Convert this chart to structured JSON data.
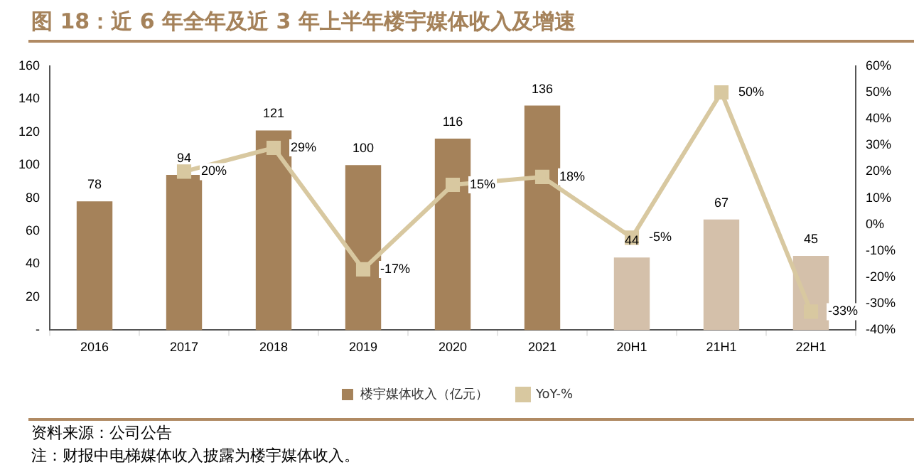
{
  "chart_data": {
    "type": "bar",
    "title": "图 18：近 6 年全年及近 3 年上半年楼宇媒体收入及增速",
    "categories": [
      "2016",
      "2017",
      "2018",
      "2019",
      "2020",
      "2021",
      "20H1",
      "21H1",
      "22H1"
    ],
    "series": [
      {
        "name": "楼宇媒体收入（亿元）",
        "colors": [
          "#a5825a",
          "#a5825a",
          "#a5825a",
          "#a5825a",
          "#a5825a",
          "#a5825a",
          "#d4c0aa",
          "#d4c0aa",
          "#d4c0aa"
        ],
        "color": "#a5825a",
        "values": [
          78,
          94,
          121,
          100,
          116,
          136,
          44,
          67,
          45
        ],
        "value_labels": [
          "78",
          "94",
          "121",
          "100",
          "116",
          "136",
          "44",
          "67",
          "45"
        ]
      },
      {
        "name": "YoY-%",
        "type": "line",
        "axis": "y2",
        "color": "#d8c8a0",
        "marker": "square",
        "values": [
          null,
          20,
          29,
          -17,
          15,
          18,
          -5,
          50,
          -33
        ],
        "value_labels": [
          null,
          "20%",
          "29%",
          "-17%",
          "15%",
          "18%",
          "-5%",
          "50%",
          "-33%"
        ]
      }
    ],
    "ylim": [
      0,
      160
    ],
    "yticks": [
      {
        "value": 0,
        "label": "-"
      },
      20,
      40,
      60,
      80,
      100,
      120,
      140,
      160
    ],
    "y2lim": [
      -40,
      60
    ],
    "y2ticks": [
      {
        "value": -40,
        "label": "-40%"
      },
      {
        "value": -30,
        "label": "-30%"
      },
      {
        "value": -20,
        "label": "-20%"
      },
      {
        "value": -10,
        "label": "-10%"
      },
      {
        "value": 0,
        "label": "0%"
      },
      {
        "value": 10,
        "label": "10%"
      },
      {
        "value": 20,
        "label": "20%"
      },
      {
        "value": 30,
        "label": "30%"
      },
      {
        "value": 40,
        "label": "40%"
      },
      {
        "value": 50,
        "label": "50%"
      },
      {
        "value": 60,
        "label": "60%"
      }
    ],
    "grid": false,
    "legend": "bottom",
    "annotations": [
      "资料来源：公司公告",
      "注：财报中电梯媒体收入披露为楼宇媒体收入。"
    ]
  }
}
